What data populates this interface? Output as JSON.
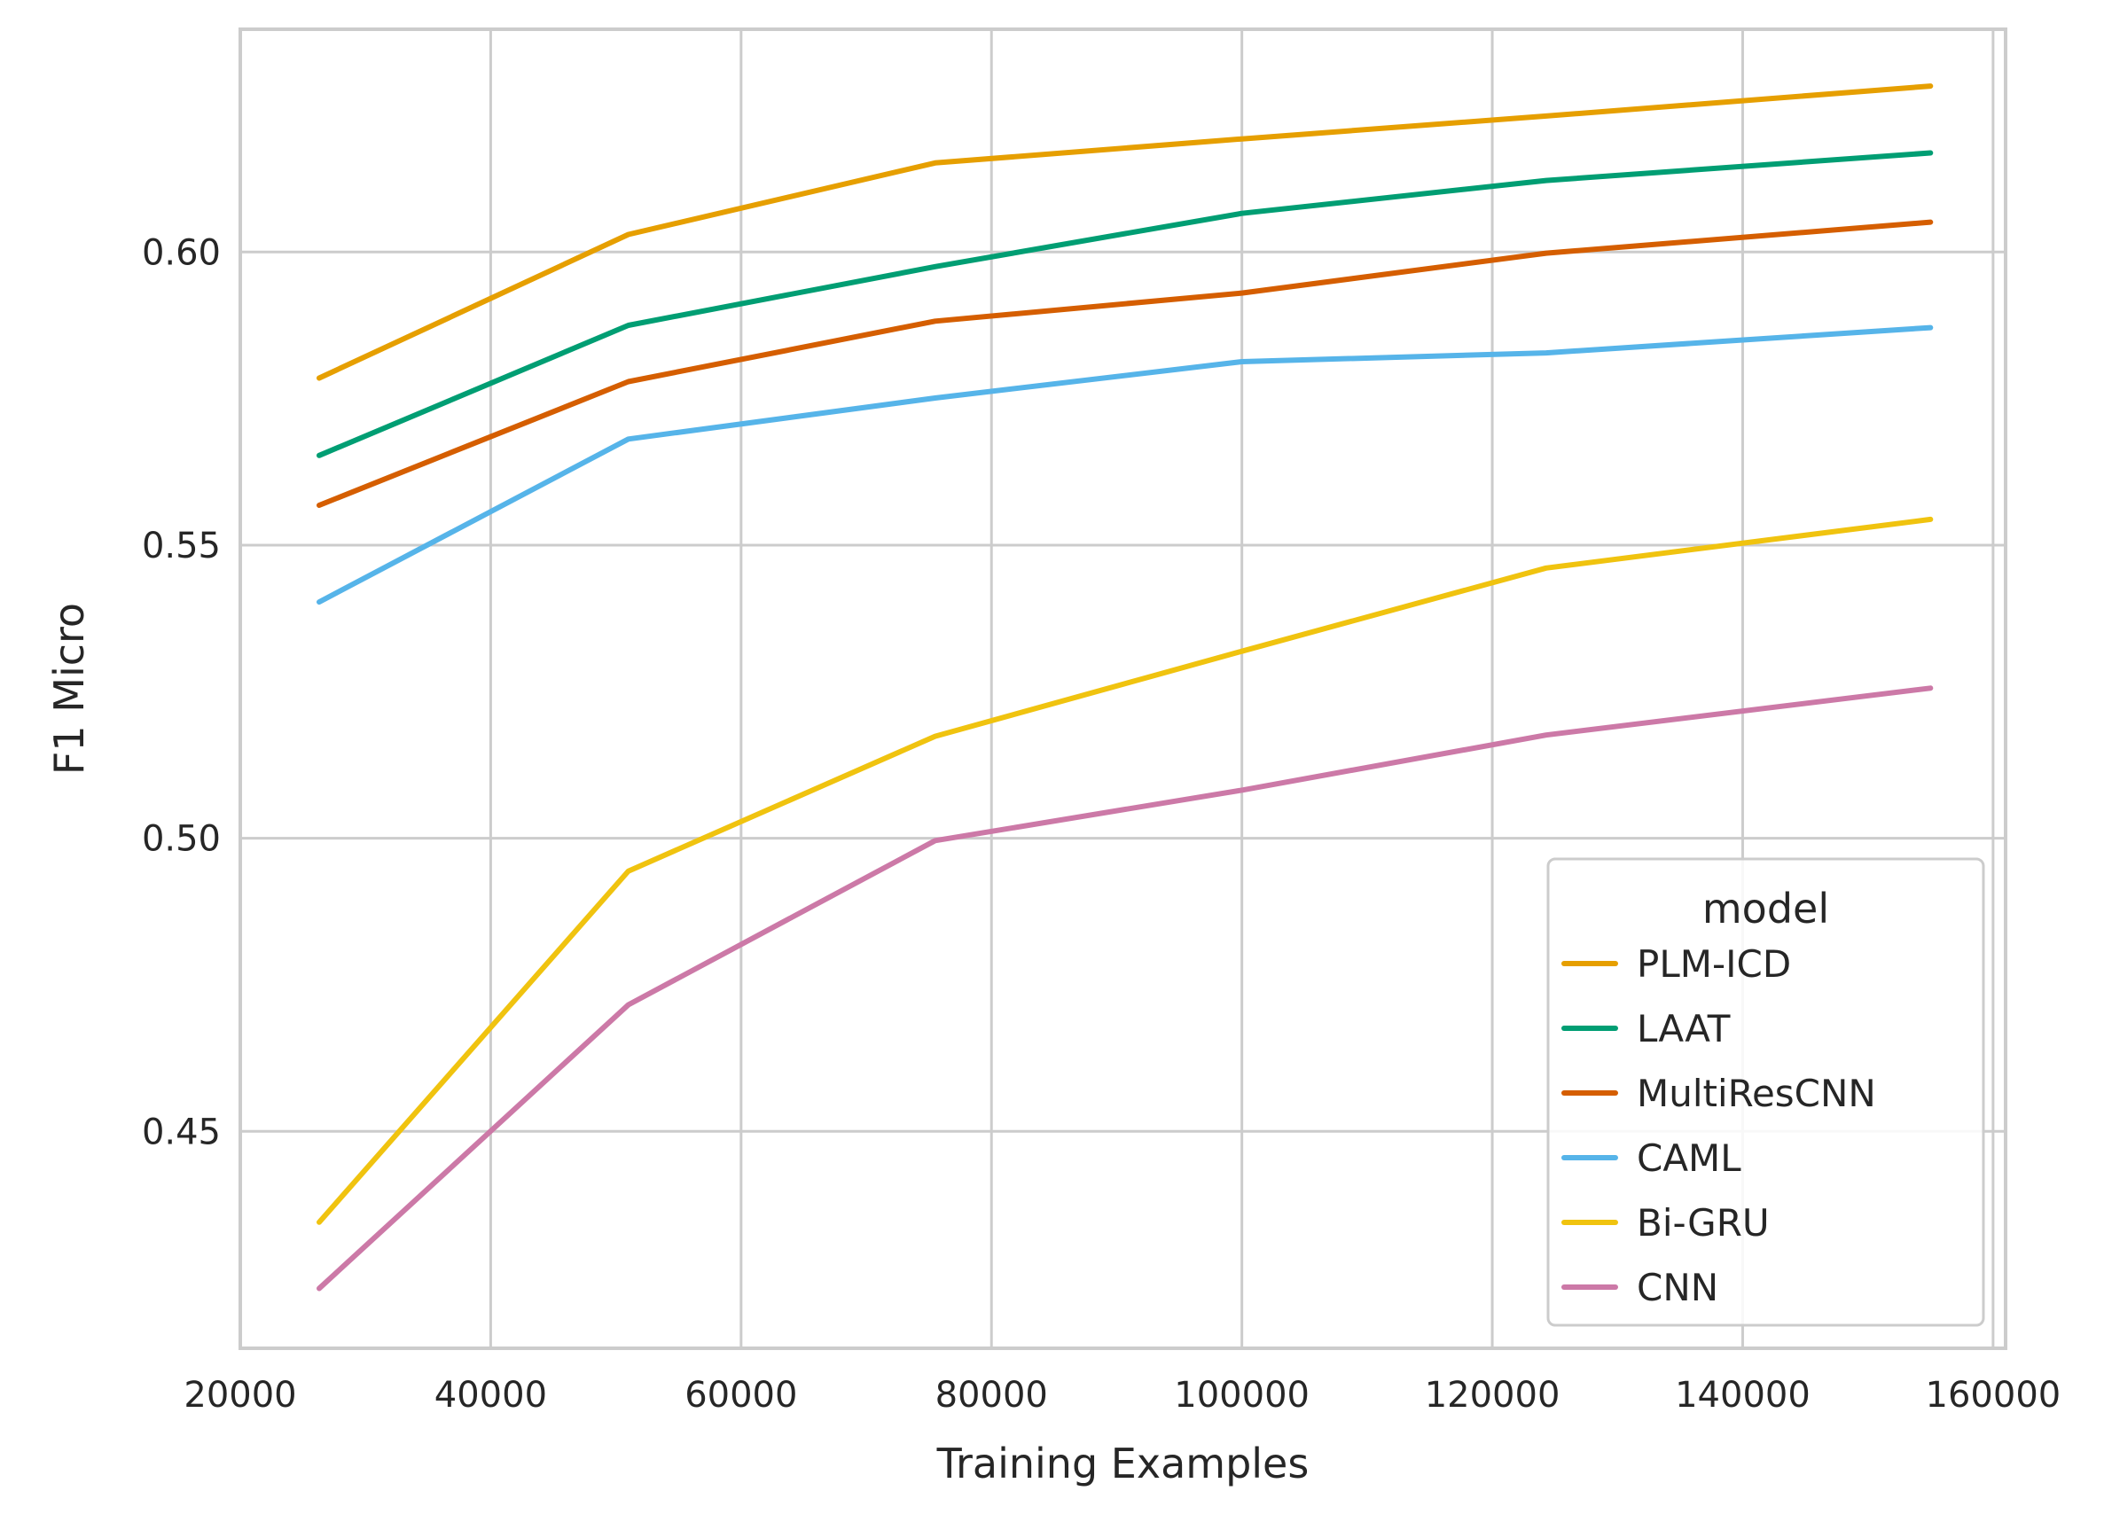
{
  "chart_data": {
    "type": "line",
    "title": "",
    "xlabel": "Training Examples",
    "ylabel": "F1 Micro",
    "xlim": [
      20000,
      161000
    ],
    "ylim": [
      0.413,
      0.638
    ],
    "xticks": [
      20000,
      40000,
      60000,
      80000,
      100000,
      120000,
      140000,
      160000
    ],
    "yticks": [
      0.45,
      0.5,
      0.55,
      0.6
    ],
    "ytick_labels": [
      "0.45",
      "0.50",
      "0.55",
      "0.60"
    ],
    "grid": true,
    "legend": {
      "title": "model",
      "placement": "lower-right"
    },
    "x": [
      26300,
      51000,
      75500,
      100000,
      124300,
      155000
    ],
    "series": [
      {
        "name": "PLM-ICD",
        "color": "#E69F00",
        "values": [
          0.5785,
          0.603,
          0.6152,
          0.6193,
          0.6232,
          0.6283
        ]
      },
      {
        "name": "LAAT",
        "color": "#009E73",
        "values": [
          0.5653,
          0.5875,
          0.5975,
          0.6066,
          0.6122,
          0.6169
        ]
      },
      {
        "name": "MultiResCNN",
        "color": "#D55E00",
        "values": [
          0.5568,
          0.5779,
          0.5882,
          0.593,
          0.5998,
          0.6051
        ]
      },
      {
        "name": "CAML",
        "color": "#56B4E9",
        "values": [
          0.5403,
          0.5681,
          0.5751,
          0.5813,
          0.5828,
          0.5871
        ]
      },
      {
        "name": "Bi-GRU",
        "color": "#F0C30F",
        "values": [
          0.4345,
          0.4944,
          0.5174,
          0.5319,
          0.5461,
          0.5544
        ]
      },
      {
        "name": "CNN",
        "color": "#CC79A7",
        "values": [
          0.4232,
          0.4716,
          0.4996,
          0.5082,
          0.5176,
          0.5256
        ]
      }
    ]
  }
}
